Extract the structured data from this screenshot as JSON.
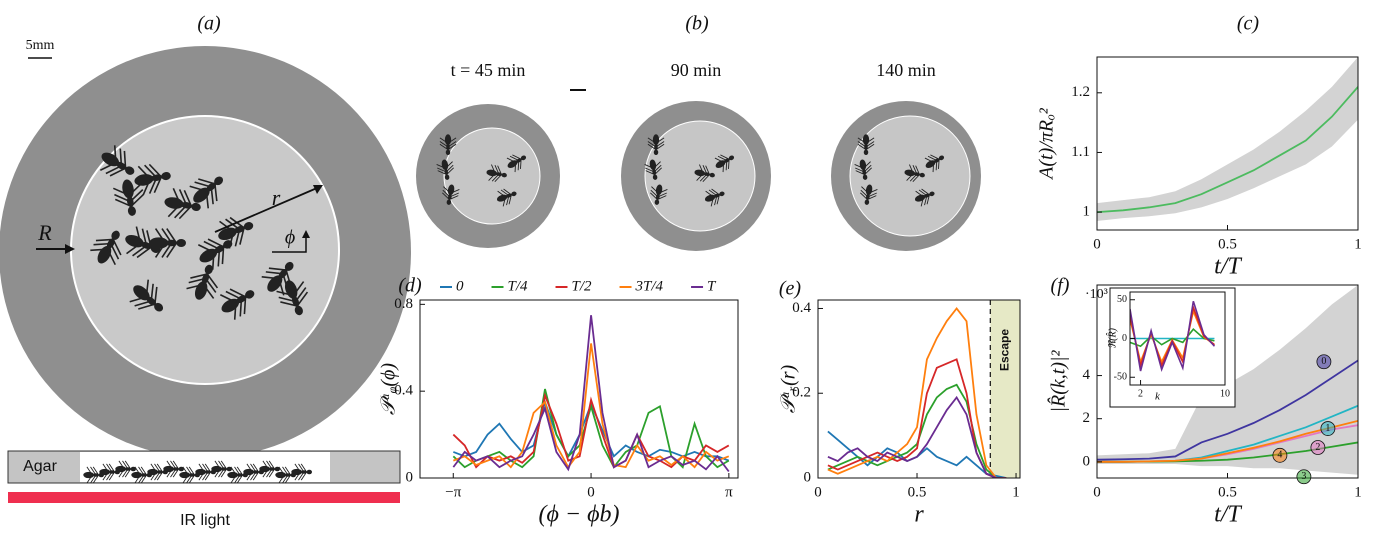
{
  "panels": {
    "a": {
      "label": "(a)",
      "scale": "5mm",
      "R": "R",
      "r": "r",
      "phi": "ϕ",
      "agar": "Agar",
      "ir": "IR light"
    },
    "b": {
      "label": "(b)",
      "times": [
        "t = 45 min",
        "90 min",
        "140 min"
      ]
    }
  },
  "chart_data": [
    {
      "type": "line",
      "title": "(c)",
      "xlabel": "t/T",
      "ylabel": "A(t)/πRₒ²",
      "x": [
        0,
        0.1,
        0.2,
        0.3,
        0.4,
        0.5,
        0.6,
        0.7,
        0.8,
        0.9,
        1
      ],
      "xlim": [
        0,
        1
      ],
      "ylim": [
        0.97,
        1.26
      ],
      "xticks": [
        0,
        0.5,
        1
      ],
      "yticks": [
        1,
        1.1,
        1.2
      ],
      "band_color": "#d3d3d3",
      "series": [
        {
          "color": "#4cbb5f",
          "values": [
            1.0,
            1.003,
            1.008,
            1.015,
            1.03,
            1.05,
            1.07,
            1.095,
            1.12,
            1.16,
            1.21
          ],
          "upper": [
            1.015,
            1.02,
            1.025,
            1.035,
            1.055,
            1.08,
            1.105,
            1.135,
            1.17,
            1.21,
            1.26
          ],
          "lower": [
            0.985,
            0.99,
            0.993,
            0.998,
            1.008,
            1.022,
            1.04,
            1.06,
            1.08,
            1.11,
            1.155
          ]
        }
      ]
    },
    {
      "type": "line",
      "title": "(d)",
      "xlabel": "(ϕ − ϕb)",
      "ylabel": "𝒫ᵃᵩ(ϕ)",
      "x": [
        -3.14,
        -2.88,
        -2.62,
        -2.36,
        -2.09,
        -1.83,
        -1.57,
        -1.31,
        -1.05,
        -0.79,
        -0.52,
        -0.26,
        0,
        0.26,
        0.52,
        0.79,
        1.05,
        1.31,
        1.57,
        1.83,
        2.09,
        2.36,
        2.62,
        2.88,
        3.14
      ],
      "xlim": [
        -3.9,
        3.35
      ],
      "ylim": [
        0,
        0.82
      ],
      "xticks": [
        {
          "value": -3.1416,
          "label": "−π"
        },
        0,
        {
          "value": 3.1416,
          "label": "π"
        }
      ],
      "yticks": [
        0,
        0.4,
        0.8
      ],
      "legend": true,
      "series": [
        {
          "name": "0",
          "color": "#1f77b4",
          "values": [
            0.12,
            0.1,
            0.12,
            0.2,
            0.25,
            0.18,
            0.12,
            0.15,
            0.35,
            0.2,
            0.1,
            0.2,
            0.34,
            0.22,
            0.1,
            0.15,
            0.12,
            0.1,
            0.13,
            0.12,
            0.1,
            0.12,
            0.1,
            0.1,
            0.08
          ]
        },
        {
          "name": "T/4",
          "color": "#2ca02c",
          "values": [
            0.1,
            0.05,
            0.08,
            0.1,
            0.12,
            0.08,
            0.05,
            0.1,
            0.41,
            0.2,
            0.1,
            0.15,
            0.33,
            0.15,
            0.05,
            0.12,
            0.15,
            0.3,
            0.33,
            0.1,
            0.05,
            0.25,
            0.1,
            0.05,
            0.08
          ]
        },
        {
          "name": "T/2",
          "color": "#d62728",
          "values": [
            0.2,
            0.15,
            0.05,
            0.1,
            0.08,
            0.1,
            0.07,
            0.12,
            0.38,
            0.25,
            0.08,
            0.1,
            0.36,
            0.2,
            0.05,
            0.08,
            0.2,
            0.1,
            0.08,
            0.05,
            0.1,
            0.08,
            0.15,
            0.12,
            0.15
          ]
        },
        {
          "name": "3T/4",
          "color": "#ff7f0e",
          "values": [
            0.08,
            0.1,
            0.06,
            0.08,
            0.1,
            0.05,
            0.12,
            0.3,
            0.35,
            0.15,
            0.05,
            0.12,
            0.62,
            0.25,
            0.06,
            0.05,
            0.15,
            0.08,
            0.1,
            0.06,
            0.1,
            0.05,
            0.12,
            0.08,
            0.1
          ]
        },
        {
          "name": "T",
          "color": "#6a2c91",
          "values": [
            0.05,
            0.12,
            0.08,
            0.1,
            0.05,
            0.08,
            0.1,
            0.2,
            0.32,
            0.12,
            0.04,
            0.2,
            0.75,
            0.3,
            0.05,
            0.08,
            0.2,
            0.05,
            0.08,
            0.1,
            0.06,
            0.08,
            0.04,
            0.1,
            0.03
          ]
        }
      ]
    },
    {
      "type": "line",
      "title": "(e)",
      "xlabel": "r",
      "ylabel": "𝒫ᵃᵣ(r)",
      "x": [
        0.05,
        0.1,
        0.15,
        0.2,
        0.25,
        0.3,
        0.35,
        0.4,
        0.45,
        0.5,
        0.55,
        0.6,
        0.65,
        0.7,
        0.75,
        0.8,
        0.85,
        0.9,
        0.95
      ],
      "xlim": [
        0,
        1.02
      ],
      "ylim": [
        0,
        0.42
      ],
      "xticks": [
        0,
        0.5,
        1
      ],
      "yticks": [
        0,
        0.2,
        0.4
      ],
      "escape": {
        "label": "Escape",
        "from": 0.87,
        "color": "#e6e9c6"
      },
      "series": [
        {
          "color": "#1f77b4",
          "values": [
            0.11,
            0.09,
            0.07,
            0.05,
            0.03,
            0.05,
            0.07,
            0.06,
            0.04,
            0.05,
            0.07,
            0.05,
            0.04,
            0.03,
            0.05,
            0.03,
            0.01,
            0.005,
            0
          ]
        },
        {
          "color": "#2ca02c",
          "values": [
            0.02,
            0.03,
            0.04,
            0.05,
            0.04,
            0.03,
            0.04,
            0.05,
            0.06,
            0.08,
            0.15,
            0.19,
            0.21,
            0.22,
            0.18,
            0.08,
            0.02,
            0,
            0
          ]
        },
        {
          "color": "#d62728",
          "values": [
            0.03,
            0.02,
            0.03,
            0.04,
            0.05,
            0.06,
            0.05,
            0.04,
            0.05,
            0.07,
            0.2,
            0.26,
            0.27,
            0.28,
            0.2,
            0.06,
            0.01,
            0,
            0
          ]
        },
        {
          "color": "#ff7f0e",
          "values": [
            0.02,
            0.01,
            0.02,
            0.03,
            0.04,
            0.05,
            0.04,
            0.06,
            0.08,
            0.12,
            0.28,
            0.33,
            0.37,
            0.4,
            0.37,
            0.15,
            0.03,
            0,
            0
          ]
        },
        {
          "color": "#6a2c91",
          "values": [
            0.05,
            0.04,
            0.06,
            0.07,
            0.05,
            0.04,
            0.06,
            0.05,
            0.04,
            0.05,
            0.08,
            0.12,
            0.16,
            0.19,
            0.15,
            0.06,
            0.01,
            0,
            0
          ]
        }
      ]
    },
    {
      "type": "line",
      "title": "(f)",
      "xlabel": "t/T",
      "ylabel": "|R̂(k,t)|²",
      "exponent": "·10³",
      "x": [
        0,
        0.1,
        0.2,
        0.3,
        0.4,
        0.5,
        0.6,
        0.7,
        0.8,
        0.9,
        1
      ],
      "xlim": [
        0,
        1
      ],
      "ylim": [
        -0.75,
        8.2
      ],
      "xticks": [
        0,
        0.5,
        1
      ],
      "yticks": [
        0,
        2,
        4
      ],
      "band_color": "#d3d3d3",
      "circled_names": true,
      "series": [
        {
          "name": "0",
          "color": "#3f35a0",
          "values": [
            0.1,
            0.12,
            0.15,
            0.25,
            0.9,
            1.3,
            1.8,
            2.4,
            3.1,
            3.9,
            4.7
          ],
          "upper": [
            0.3,
            0.35,
            0.4,
            0.6,
            3,
            3.6,
            4.3,
            5.2,
            6.2,
            7.3,
            8.2
          ],
          "lower": [
            -0.1,
            -0.1,
            -0.1,
            -0.1,
            -0.2,
            -0.2,
            -0.3,
            -0.3,
            -0.4,
            -0.5,
            -0.6
          ]
        },
        {
          "name": "1",
          "color": "#22b5c4",
          "values": [
            0,
            0,
            0.02,
            0.05,
            0.2,
            0.5,
            0.8,
            1.2,
            1.6,
            2.1,
            2.6
          ]
        },
        {
          "name": "2",
          "color": "#e377c2",
          "values": [
            0,
            0,
            0.02,
            0.05,
            0.15,
            0.35,
            0.6,
            0.9,
            1.2,
            1.5,
            1.7
          ]
        },
        {
          "name": "3",
          "color": "#2ca02c",
          "values": [
            0,
            0,
            0.01,
            0.02,
            0.05,
            0.1,
            0.2,
            0.35,
            0.5,
            0.7,
            0.9
          ]
        },
        {
          "name": "4",
          "color": "#ff7f0e",
          "values": [
            0,
            0,
            0.02,
            0.05,
            0.15,
            0.4,
            0.65,
            0.95,
            1.3,
            1.6,
            1.9
          ]
        }
      ]
    },
    {
      "type": "line",
      "xlabel": "k",
      "ylabel": "ℜ(R̂)",
      "x": [
        1,
        2,
        3,
        4,
        5,
        6,
        7,
        8,
        9
      ],
      "xlim": [
        1,
        10
      ],
      "ylim": [
        -60,
        60
      ],
      "xticks": [
        2,
        10
      ],
      "yticks": [
        -50,
        0,
        50
      ],
      "series": [
        {
          "color": "#22b5c4",
          "values": [
            0,
            0,
            0,
            0,
            0,
            0,
            0,
            0,
            0
          ]
        },
        {
          "color": "#2ca02c",
          "values": [
            -5,
            -10,
            3,
            -8,
            0,
            -5,
            12,
            0,
            -3
          ]
        },
        {
          "color": "#ff7f0e",
          "values": [
            25,
            -30,
            5,
            -30,
            -2,
            -25,
            35,
            2,
            -8
          ]
        },
        {
          "color": "#d62728",
          "values": [
            30,
            -35,
            8,
            -35,
            -3,
            -30,
            40,
            3,
            -8
          ]
        },
        {
          "color": "#6a2c91",
          "values": [
            38,
            -42,
            10,
            -40,
            -5,
            -38,
            48,
            5,
            -10
          ]
        }
      ]
    }
  ]
}
